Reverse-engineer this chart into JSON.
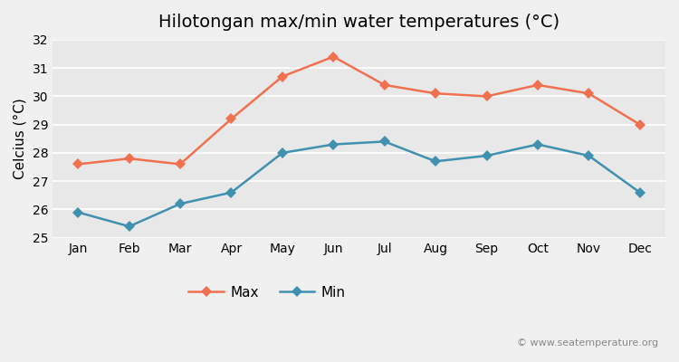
{
  "title": "Hilotongan max/min water temperatures (°C)",
  "ylabel": "Celcius (°C)",
  "months": [
    "Jan",
    "Feb",
    "Mar",
    "Apr",
    "May",
    "Jun",
    "Jul",
    "Aug",
    "Sep",
    "Oct",
    "Nov",
    "Dec"
  ],
  "max_values": [
    27.6,
    27.8,
    27.6,
    29.2,
    30.7,
    31.4,
    30.4,
    30.1,
    30.0,
    30.4,
    30.1,
    29.0
  ],
  "min_values": [
    25.9,
    25.4,
    26.2,
    26.6,
    28.0,
    28.3,
    28.4,
    27.7,
    27.9,
    28.3,
    27.9,
    26.6
  ],
  "max_color": "#f07050",
  "min_color": "#4090b0",
  "bg_color": "#f0f0f0",
  "plot_bg_color": "#e8e8e8",
  "ylim": [
    25,
    32
  ],
  "yticks": [
    25,
    26,
    27,
    28,
    29,
    30,
    31,
    32
  ],
  "legend_labels": [
    "Max",
    "Min"
  ],
  "watermark": "© www.seatemperature.org",
  "title_fontsize": 14,
  "label_fontsize": 11,
  "tick_fontsize": 10,
  "watermark_fontsize": 8
}
